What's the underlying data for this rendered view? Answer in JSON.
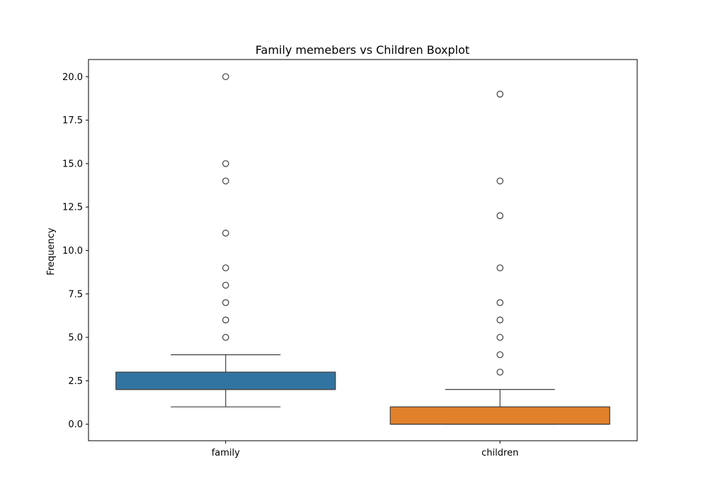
{
  "chart_data": {
    "type": "box",
    "title": "Family memebers vs Children Boxplot",
    "xlabel": "",
    "ylabel": "Frequency",
    "ylim": [
      -0.95,
      20.99
    ],
    "yticks": [
      0.0,
      2.5,
      5.0,
      7.5,
      10.0,
      12.5,
      15.0,
      17.5,
      20.0
    ],
    "ytick_labels": [
      "0.0",
      "2.5",
      "5.0",
      "7.5",
      "10.0",
      "12.5",
      "15.0",
      "17.5",
      "20.0"
    ],
    "grid": false,
    "categories": [
      "family",
      "children"
    ],
    "boxes": [
      {
        "category": "family",
        "color": "#3274a1",
        "whisker_low": 1,
        "q1": 2,
        "median": 2,
        "q3": 3,
        "whisker_high": 4,
        "outliers": [
          5,
          6,
          7,
          8,
          9,
          11,
          14,
          15,
          20
        ]
      },
      {
        "category": "children",
        "color": "#e1812c",
        "whisker_low": 0,
        "q1": 0,
        "median": 0,
        "q3": 1,
        "whisker_high": 2,
        "outliers": [
          3,
          4,
          5,
          6,
          7,
          9,
          12,
          14,
          19
        ]
      }
    ]
  }
}
